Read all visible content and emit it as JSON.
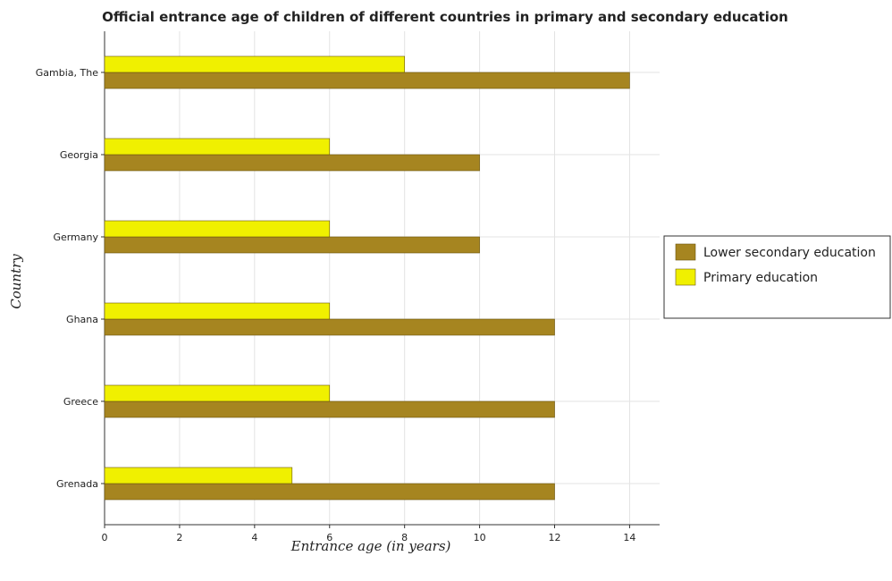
{
  "chart_data": {
    "type": "bar",
    "orientation": "horizontal",
    "title": "Official entrance age of children of different countries in primary and secondary education",
    "xlabel": "Entrance age (in  years)",
    "ylabel": "Country",
    "xlim": [
      0,
      14.8
    ],
    "xticks": [
      0,
      2,
      4,
      6,
      8,
      10,
      12,
      14
    ],
    "categories": [
      "Gambia, The",
      "Georgia",
      "Germany",
      "Ghana",
      "Greece",
      "Grenada"
    ],
    "series": [
      {
        "name": "Lower secondary education",
        "color": "#a68520",
        "values": [
          14,
          10,
          10,
          12,
          12,
          12
        ]
      },
      {
        "name": "Primary education",
        "color": "#f0f000",
        "values": [
          8,
          6,
          6,
          6,
          6,
          5
        ]
      }
    ],
    "grid": true,
    "legend_position": "right"
  }
}
